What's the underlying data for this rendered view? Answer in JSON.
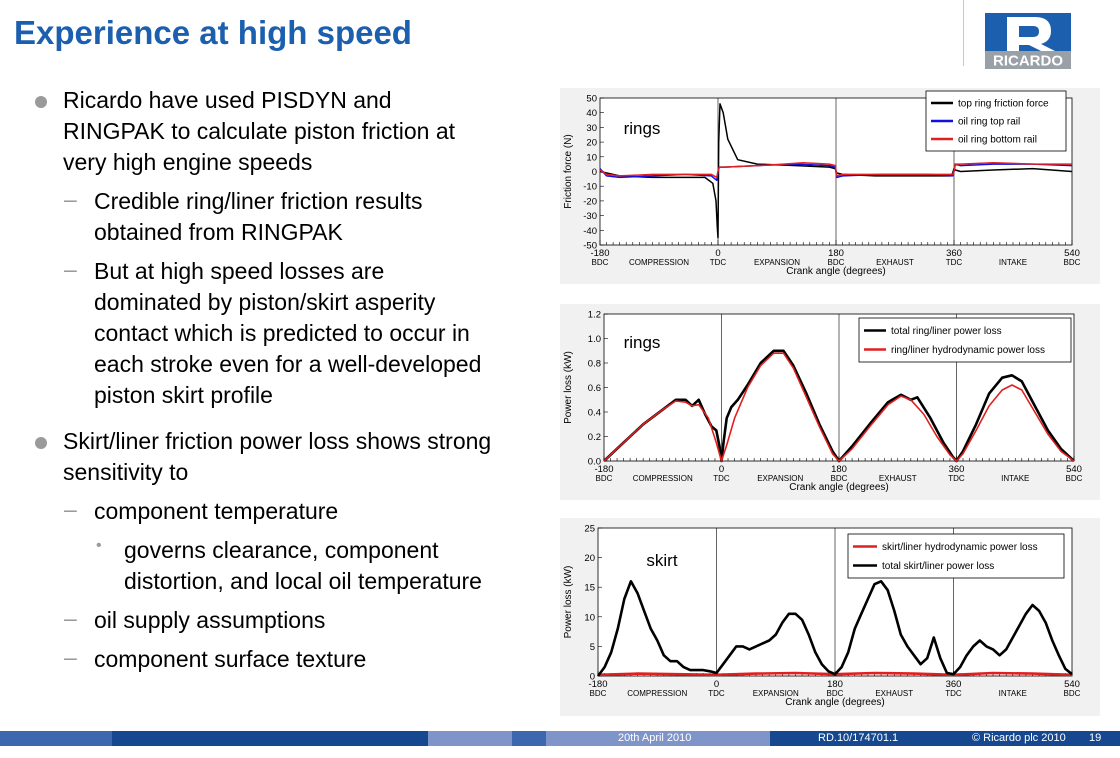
{
  "title": "Experience at high speed",
  "logo_text": "RICARDO",
  "bullets": {
    "b1": [
      "Ricardo have used PISDYN and",
      "RINGPAK to calculate piston friction at",
      "very high engine speeds"
    ],
    "b1a": [
      "Credible ring/liner friction results",
      "obtained from RINGPAK"
    ],
    "b1b": [
      "But at high speed losses are",
      "dominated by piston/skirt asperity",
      "contact which is predicted to occur in",
      "each stroke even for a well-developed",
      "piston skirt profile"
    ],
    "b2": [
      "Skirt/liner friction power loss shows strong",
      "sensitivity to"
    ],
    "b2a": "component temperature",
    "b2a1": [
      "governs clearance, component",
      "distortion, and local oil temperature"
    ],
    "b2b": "oil supply assumptions",
    "b2c": "component surface texture"
  },
  "footer": {
    "date": "20th April 2010",
    "ref": "RD.10/174701.1",
    "copyright": "© Ricardo plc 2010",
    "page": "19"
  },
  "colors": {
    "title": "#1b5fae",
    "footer_dark": "#16488f",
    "footer_mid": "#3d68b0",
    "footer_light": "#7f95c9",
    "black": "#000000",
    "red": "#e02020",
    "blue": "#1010e0"
  },
  "chart_data": [
    {
      "type": "line",
      "title": "",
      "annotation": "rings",
      "ylabel": "Friction force (N)",
      "xlabel": "Crank angle (degrees)",
      "xlim": [
        -180,
        540
      ],
      "ylim": [
        -50,
        50
      ],
      "yticks": [
        -50,
        -40,
        -30,
        -20,
        -10,
        0,
        10,
        20,
        30,
        40,
        50
      ],
      "xticks": [
        {
          "v": -180,
          "l1": "-180",
          "l2": "BDC"
        },
        {
          "v": 0,
          "l1": "0",
          "l2": "TDC"
        },
        {
          "v": 180,
          "l1": "180",
          "l2": "BDC"
        },
        {
          "v": 360,
          "l1": "360",
          "l2": "TDC"
        },
        {
          "v": 540,
          "l1": "540",
          "l2": "BDC"
        }
      ],
      "strokes": [
        {
          "v": -90,
          "l": "COMPRESSION"
        },
        {
          "v": 90,
          "l": "EXPANSION"
        },
        {
          "v": 270,
          "l": "EXHAUST"
        },
        {
          "v": 450,
          "l": "INTAKE"
        }
      ],
      "series": [
        {
          "name": "top ring friction force",
          "color": "#000000",
          "width": 1.5,
          "x": [
            -180,
            -150,
            -100,
            -60,
            -20,
            -8,
            -3,
            -1,
            0,
            1,
            3,
            8,
            15,
            30,
            60,
            120,
            170,
            179,
            181,
            190,
            240,
            300,
            340,
            355,
            358,
            360,
            362,
            370,
            420,
            480,
            540
          ],
          "y": [
            0,
            -3,
            -4,
            -4,
            -4,
            -8,
            -20,
            -38,
            -45,
            20,
            46,
            40,
            22,
            8,
            5,
            4,
            3,
            2,
            -1,
            -2,
            -3,
            -3,
            -3,
            -3,
            -1,
            2,
            1,
            0,
            1,
            2,
            0
          ]
        },
        {
          "name": "oil ring top rail",
          "color": "#1010e0",
          "width": 1.5,
          "x": [
            -180,
            -170,
            -150,
            -100,
            -50,
            -10,
            -2,
            0,
            2,
            10,
            60,
            120,
            170,
            179,
            181,
            190,
            250,
            320,
            358,
            360,
            362,
            370,
            420,
            480,
            540
          ],
          "y": [
            2,
            -3,
            -4,
            -3,
            -2,
            -3,
            -6,
            0,
            3,
            3,
            4,
            5,
            4,
            3,
            -4,
            -3,
            -2,
            -2,
            -3,
            0,
            5,
            4,
            5,
            5,
            4
          ]
        },
        {
          "name": "oil ring bottom rail",
          "color": "#e02020",
          "width": 1.5,
          "x": [
            -180,
            -170,
            -150,
            -100,
            -50,
            -10,
            -2,
            0,
            2,
            10,
            60,
            100,
            130,
            170,
            179,
            181,
            190,
            250,
            320,
            358,
            360,
            362,
            370,
            420,
            480,
            540
          ],
          "y": [
            1,
            -2,
            -3,
            -2,
            -2,
            -2,
            -4,
            0,
            3,
            3,
            4,
            5,
            6,
            5,
            4,
            -3,
            -2,
            -2,
            -2,
            -2,
            0,
            5,
            5,
            6,
            5,
            5
          ]
        }
      ]
    },
    {
      "type": "line",
      "title": "",
      "annotation": "rings",
      "ylabel": "Power loss (kW)",
      "xlabel": "Crank angle (degrees)",
      "xlim": [
        -180,
        540
      ],
      "ylim": [
        0.0,
        1.2
      ],
      "yticks": [
        0.0,
        0.2,
        0.4,
        0.6,
        0.8,
        1.0,
        1.2
      ],
      "ytick_labels": [
        "0.0",
        "0.2",
        "0.4",
        "0.6",
        "0.8",
        "1.0",
        "1.2"
      ],
      "xticks": [
        {
          "v": -180,
          "l1": "-180",
          "l2": "BDC"
        },
        {
          "v": 0,
          "l1": "0",
          "l2": "TDC"
        },
        {
          "v": 180,
          "l1": "180",
          "l2": "BDC"
        },
        {
          "v": 360,
          "l1": "360",
          "l2": "TDC"
        },
        {
          "v": 540,
          "l1": "540",
          "l2": "BDC"
        }
      ],
      "strokes": [
        {
          "v": -90,
          "l": "COMPRESSION"
        },
        {
          "v": 90,
          "l": "EXPANSION"
        },
        {
          "v": 270,
          "l": "EXHAUST"
        },
        {
          "v": 450,
          "l": "INTAKE"
        }
      ],
      "series": [
        {
          "name": "total ring/liner power loss",
          "color": "#000000",
          "width": 2.6,
          "x": [
            -180,
            -150,
            -120,
            -90,
            -70,
            -55,
            -45,
            -35,
            -25,
            -15,
            -8,
            -3,
            0,
            3,
            8,
            15,
            25,
            40,
            60,
            80,
            95,
            110,
            130,
            150,
            170,
            180,
            200,
            230,
            255,
            275,
            290,
            300,
            320,
            340,
            355,
            360,
            370,
            390,
            410,
            430,
            445,
            460,
            480,
            500,
            520,
            540
          ],
          "y": [
            0.0,
            0.15,
            0.3,
            0.42,
            0.5,
            0.5,
            0.45,
            0.5,
            0.38,
            0.28,
            0.25,
            0.12,
            0.0,
            0.15,
            0.35,
            0.44,
            0.5,
            0.62,
            0.8,
            0.9,
            0.9,
            0.78,
            0.55,
            0.3,
            0.08,
            0.0,
            0.12,
            0.32,
            0.48,
            0.54,
            0.5,
            0.52,
            0.35,
            0.15,
            0.03,
            0.0,
            0.08,
            0.3,
            0.55,
            0.68,
            0.7,
            0.65,
            0.45,
            0.25,
            0.1,
            0.0
          ]
        },
        {
          "name": "ring/liner hydrodynamic power loss",
          "color": "#e02020",
          "width": 1.6,
          "x": [
            -180,
            -150,
            -120,
            -90,
            -70,
            -55,
            -45,
            -35,
            -20,
            -8,
            0,
            8,
            20,
            40,
            60,
            80,
            95,
            110,
            130,
            150,
            170,
            180,
            200,
            230,
            255,
            275,
            290,
            310,
            330,
            350,
            360,
            370,
            390,
            410,
            430,
            445,
            460,
            480,
            500,
            520,
            540
          ],
          "y": [
            0.0,
            0.15,
            0.3,
            0.42,
            0.49,
            0.48,
            0.45,
            0.46,
            0.35,
            0.15,
            0.0,
            0.13,
            0.35,
            0.6,
            0.78,
            0.88,
            0.88,
            0.76,
            0.52,
            0.28,
            0.06,
            0.0,
            0.1,
            0.3,
            0.46,
            0.53,
            0.5,
            0.38,
            0.2,
            0.05,
            0.0,
            0.06,
            0.25,
            0.45,
            0.58,
            0.62,
            0.58,
            0.4,
            0.22,
            0.08,
            0.0
          ]
        }
      ]
    },
    {
      "type": "line",
      "title": "",
      "annotation": "skirt",
      "ylabel": "Power loss (kW)",
      "xlabel": "Crank angle (degrees)",
      "xlim": [
        -180,
        540
      ],
      "ylim": [
        0,
        25
      ],
      "yticks": [
        0,
        5,
        10,
        15,
        20,
        25
      ],
      "xticks": [
        {
          "v": -180,
          "l1": "-180",
          "l2": "BDC"
        },
        {
          "v": 0,
          "l1": "0",
          "l2": "TDC"
        },
        {
          "v": 180,
          "l1": "180",
          "l2": "BDC"
        },
        {
          "v": 360,
          "l1": "360",
          "l2": "TDC"
        },
        {
          "v": 540,
          "l1": "540",
          "l2": "BDC"
        }
      ],
      "strokes": [
        {
          "v": -90,
          "l": "COMPRESSION"
        },
        {
          "v": 90,
          "l": "EXPANSION"
        },
        {
          "v": 270,
          "l": "EXHAUST"
        },
        {
          "v": 450,
          "l": "INTAKE"
        }
      ],
      "series": [
        {
          "name": "skirt/liner hydrodynamic power loss",
          "color": "#e02020",
          "width": 2.6,
          "x": [
            -180,
            -120,
            -60,
            0,
            60,
            120,
            180,
            240,
            300,
            360,
            420,
            480,
            540
          ],
          "y": [
            0.2,
            0.4,
            0.3,
            0.2,
            0.4,
            0.5,
            0.3,
            0.5,
            0.4,
            0.2,
            0.5,
            0.4,
            0.2
          ]
        },
        {
          "name": "total skirt/liner power loss",
          "color": "#000000",
          "width": 2.6,
          "x": [
            -180,
            -170,
            -160,
            -150,
            -140,
            -130,
            -120,
            -110,
            -100,
            -90,
            -80,
            -70,
            -60,
            -50,
            -40,
            -30,
            -20,
            -10,
            0,
            10,
            20,
            30,
            40,
            50,
            60,
            70,
            80,
            90,
            100,
            110,
            120,
            130,
            140,
            150,
            160,
            170,
            180,
            190,
            200,
            210,
            220,
            230,
            240,
            250,
            260,
            270,
            280,
            290,
            300,
            310,
            320,
            330,
            340,
            350,
            360,
            370,
            380,
            390,
            400,
            410,
            420,
            430,
            440,
            450,
            460,
            470,
            480,
            490,
            500,
            510,
            520,
            530,
            540
          ],
          "y": [
            0,
            1.5,
            4,
            8,
            13,
            16,
            14,
            11,
            8,
            6,
            3.5,
            2.5,
            2.5,
            1.5,
            1,
            1,
            1,
            0.8,
            0.5,
            2,
            3.5,
            5,
            5,
            4.5,
            5,
            5.5,
            6,
            7,
            9,
            10.5,
            10.5,
            9.5,
            7,
            4,
            2,
            0.8,
            0.3,
            1.5,
            4,
            8,
            10.5,
            13,
            15.5,
            16,
            14.5,
            11,
            7,
            5,
            3.5,
            2,
            3,
            6.5,
            3,
            0.5,
            0.3,
            1.5,
            3.5,
            5,
            6,
            5,
            4.5,
            3.5,
            4.5,
            6.5,
            8.5,
            10.5,
            12,
            11,
            9,
            6,
            3.5,
            1.2,
            0.3
          ]
        }
      ]
    }
  ]
}
